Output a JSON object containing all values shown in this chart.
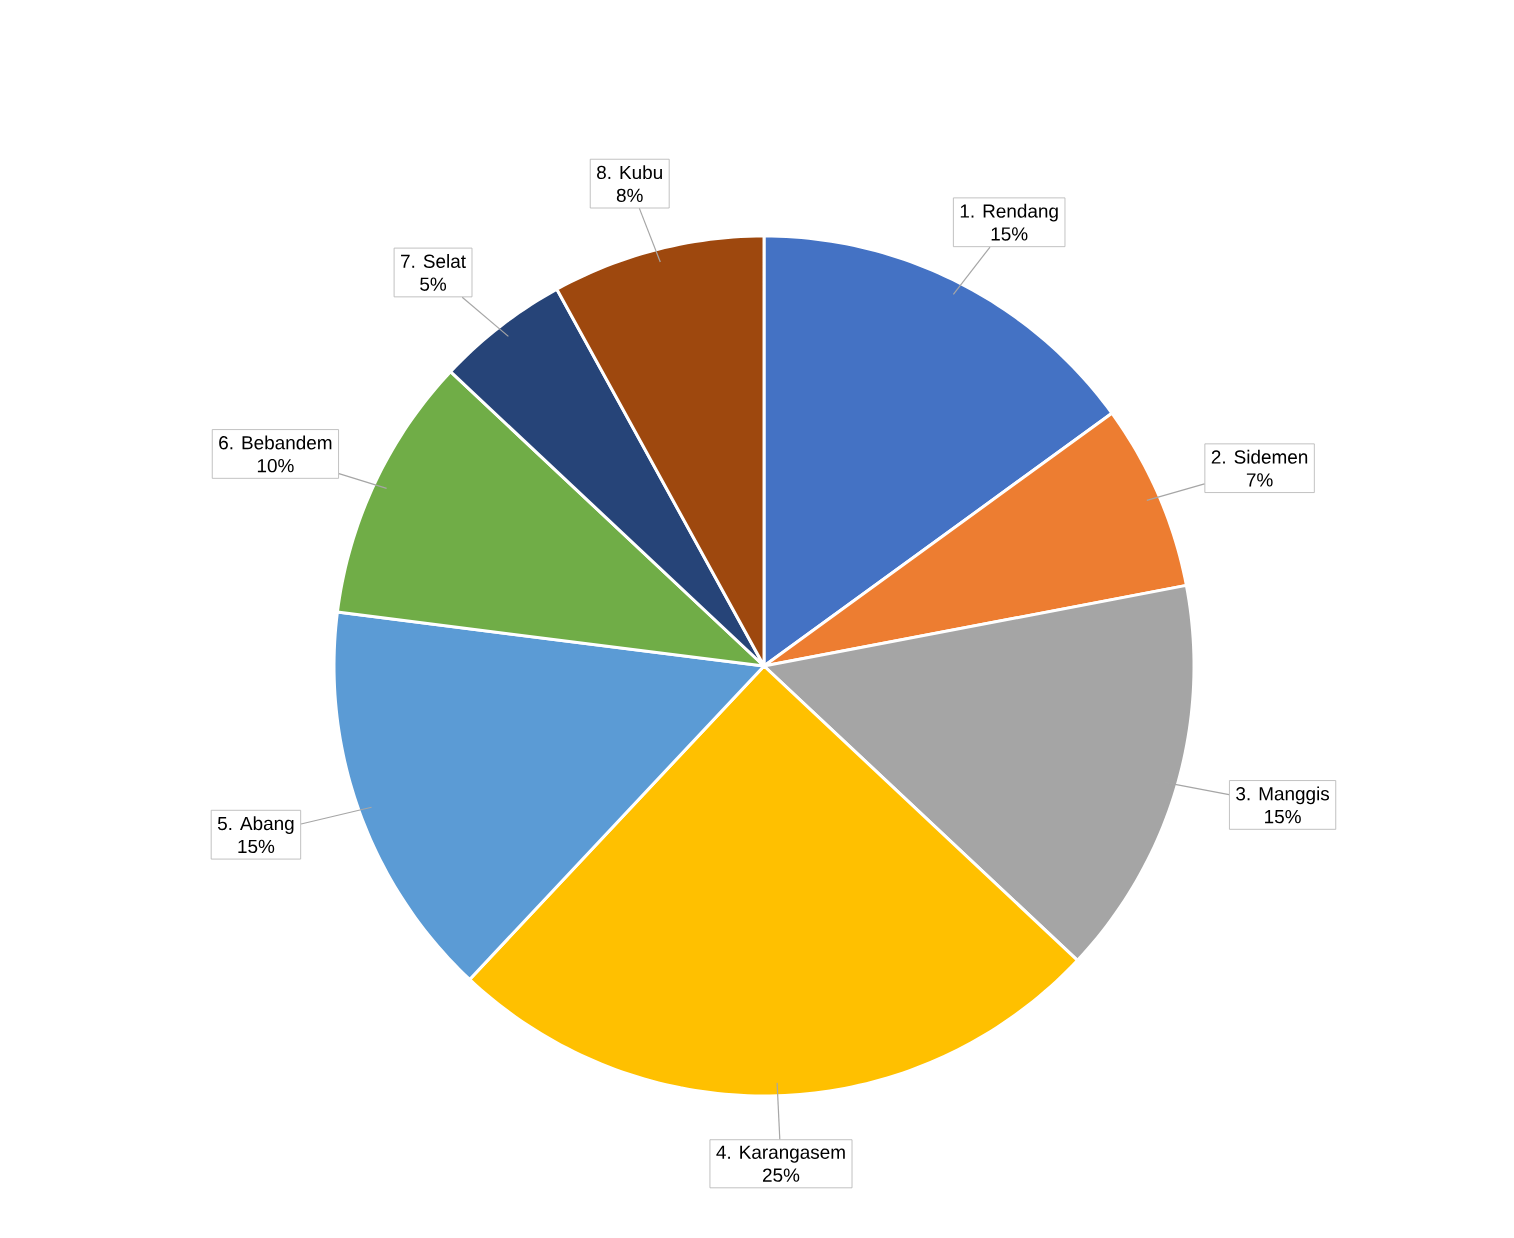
{
  "chart_data": {
    "type": "pie",
    "categories": [
      "1. Rendang",
      "2. Sidemen",
      "3. Manggis",
      "4. Karangasem",
      "5. Abang",
      "6. Bebandem",
      "7. Selat",
      "8. Kubu"
    ],
    "values": [
      15,
      7,
      15,
      25,
      15,
      10,
      5,
      8
    ],
    "value_labels": [
      "15%",
      "7%",
      "15%",
      "25%",
      "15%",
      "10%",
      "5%",
      "8%"
    ],
    "colors": [
      "#4472c4",
      "#ed7d31",
      "#a5a5a5",
      "#ffc000",
      "#5b9bd5",
      "#70ad47",
      "#264478",
      "#9e480e"
    ]
  }
}
